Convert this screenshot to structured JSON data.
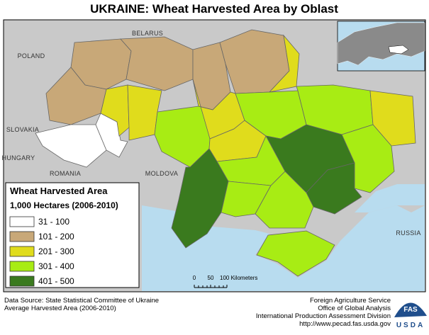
{
  "title": "UKRAINE: Wheat Harvested Area by Oblast",
  "map_labels": [
    "BELARUS",
    "POLAND",
    "SLOVAKIA",
    "HUNGARY",
    "ROMANIA",
    "MOLDOVA",
    "RUSSIA"
  ],
  "legend": {
    "title": "Wheat Harvested Area",
    "subtitle": "1,000 Hectares (2006-2010)",
    "items": [
      {
        "label": "31 - 100",
        "color": "#ffffff"
      },
      {
        "label": "101 - 200",
        "color": "#c8a878"
      },
      {
        "label": "201 - 300",
        "color": "#e0dc1c"
      },
      {
        "label": "301 - 400",
        "color": "#a8ec14"
      },
      {
        "label": "401 - 500",
        "color": "#3a7a1e"
      }
    ]
  },
  "scale_bar": [
    "0",
    "50",
    "100 Kilometers"
  ],
  "source": [
    "Data Source: State Statistical Committee of Ukraine",
    "Average Harvested Area (2006-2010)"
  ],
  "credits": [
    "Foreign Agriculture Service",
    "Office of Global Analysis",
    "International Production Assessment Division",
    "http://www.pecad.fas.usda.gov"
  ],
  "logo": [
    "FAS",
    "USDA"
  ]
}
